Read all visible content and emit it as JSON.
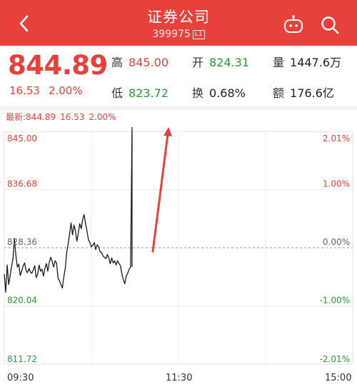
{
  "header": {
    "title": "证券公司",
    "code": "399975",
    "level_badge": "L1",
    "back_icon": "chevron-left-icon",
    "robot_icon": "robot-icon",
    "search_icon": "search-icon"
  },
  "quote": {
    "price": "844.89",
    "change": "16.53",
    "change_pct": "2.00%",
    "high_label": "高",
    "high": "845.00",
    "open_label": "开",
    "open": "824.31",
    "volume_label": "量",
    "volume": "1447.6万",
    "low_label": "低",
    "low": "823.72",
    "turnover_label": "换",
    "turnover": "0.68%",
    "amount_label": "额",
    "amount": "176.6亿"
  },
  "latest": {
    "label": "最新:844.89",
    "change": "16.53",
    "change_pct": "2.00%"
  },
  "colors": {
    "accent": "#e8413c",
    "up": "#e8413c",
    "down": "#2a9a3a"
  },
  "chart_data": {
    "type": "line",
    "ylim": [
      811.72,
      845.0
    ],
    "y_ticks_left": [
      "845.00",
      "836.68",
      "828.36",
      "820.04",
      "811.72"
    ],
    "y_ticks_right": [
      "2.01%",
      "1.00%",
      "0.00%",
      "-1.00%",
      "-2.01%"
    ],
    "x_ticks": [
      "09:30",
      "11:30",
      "15:00"
    ],
    "grid": true,
    "series": [
      {
        "x": [
          0,
          1,
          2,
          3,
          4,
          5,
          6,
          7,
          8,
          9,
          10,
          11,
          12,
          13,
          14,
          15,
          16,
          17,
          18,
          19,
          20,
          21,
          22,
          23,
          24,
          25,
          26,
          27,
          28,
          29,
          30,
          31,
          32,
          33,
          34,
          35,
          36,
          37,
          38,
          39,
          40,
          41,
          42,
          43,
          44,
          45,
          46,
          47,
          48,
          49,
          50,
          51,
          52,
          53,
          54,
          55,
          56,
          57,
          58,
          59,
          60,
          61,
          62,
          63,
          64,
          65,
          66,
          67,
          68,
          69,
          70,
          71,
          72,
          73,
          74,
          75,
          76,
          77,
          78,
          79,
          80,
          81,
          82,
          83,
          84,
          85,
          86,
          87,
          88
        ],
        "y": [
          824.6,
          822.0,
          825.9,
          823.1,
          824.3,
          825.7,
          826.8,
          829.7,
          827.2,
          825.6,
          826.0,
          824.4,
          825.0,
          825.8,
          826.2,
          825.1,
          824.8,
          825.4,
          824.9,
          824.7,
          825.2,
          825.8,
          824.1,
          824.6,
          825.9,
          825.0,
          825.3,
          824.3,
          825.4,
          826.1,
          825.0,
          826.3,
          827.0,
          826.4,
          825.6,
          826.5,
          826.2,
          824.1,
          823.6,
          823.1,
          822.6,
          824.2,
          825.4,
          827.7,
          828.9,
          830.4,
          831.9,
          830.2,
          831.6,
          830.8,
          829.3,
          830.5,
          831.8,
          831.1,
          832.4,
          833.1,
          831.8,
          830.7,
          829.5,
          829.1,
          828.5,
          828.7,
          829.1,
          828.1,
          828.8,
          828.5,
          827.8,
          827.7,
          827.2,
          827.0,
          826.8,
          827.4,
          826.9,
          826.1,
          826.9,
          826.2,
          826.5,
          825.9,
          826.5,
          826.1,
          825.8,
          824.6,
          823.8,
          823.2,
          824.3,
          824.7,
          825.3,
          825.6,
          845.0
        ]
      }
    ],
    "annotation": "red-up-arrow"
  }
}
